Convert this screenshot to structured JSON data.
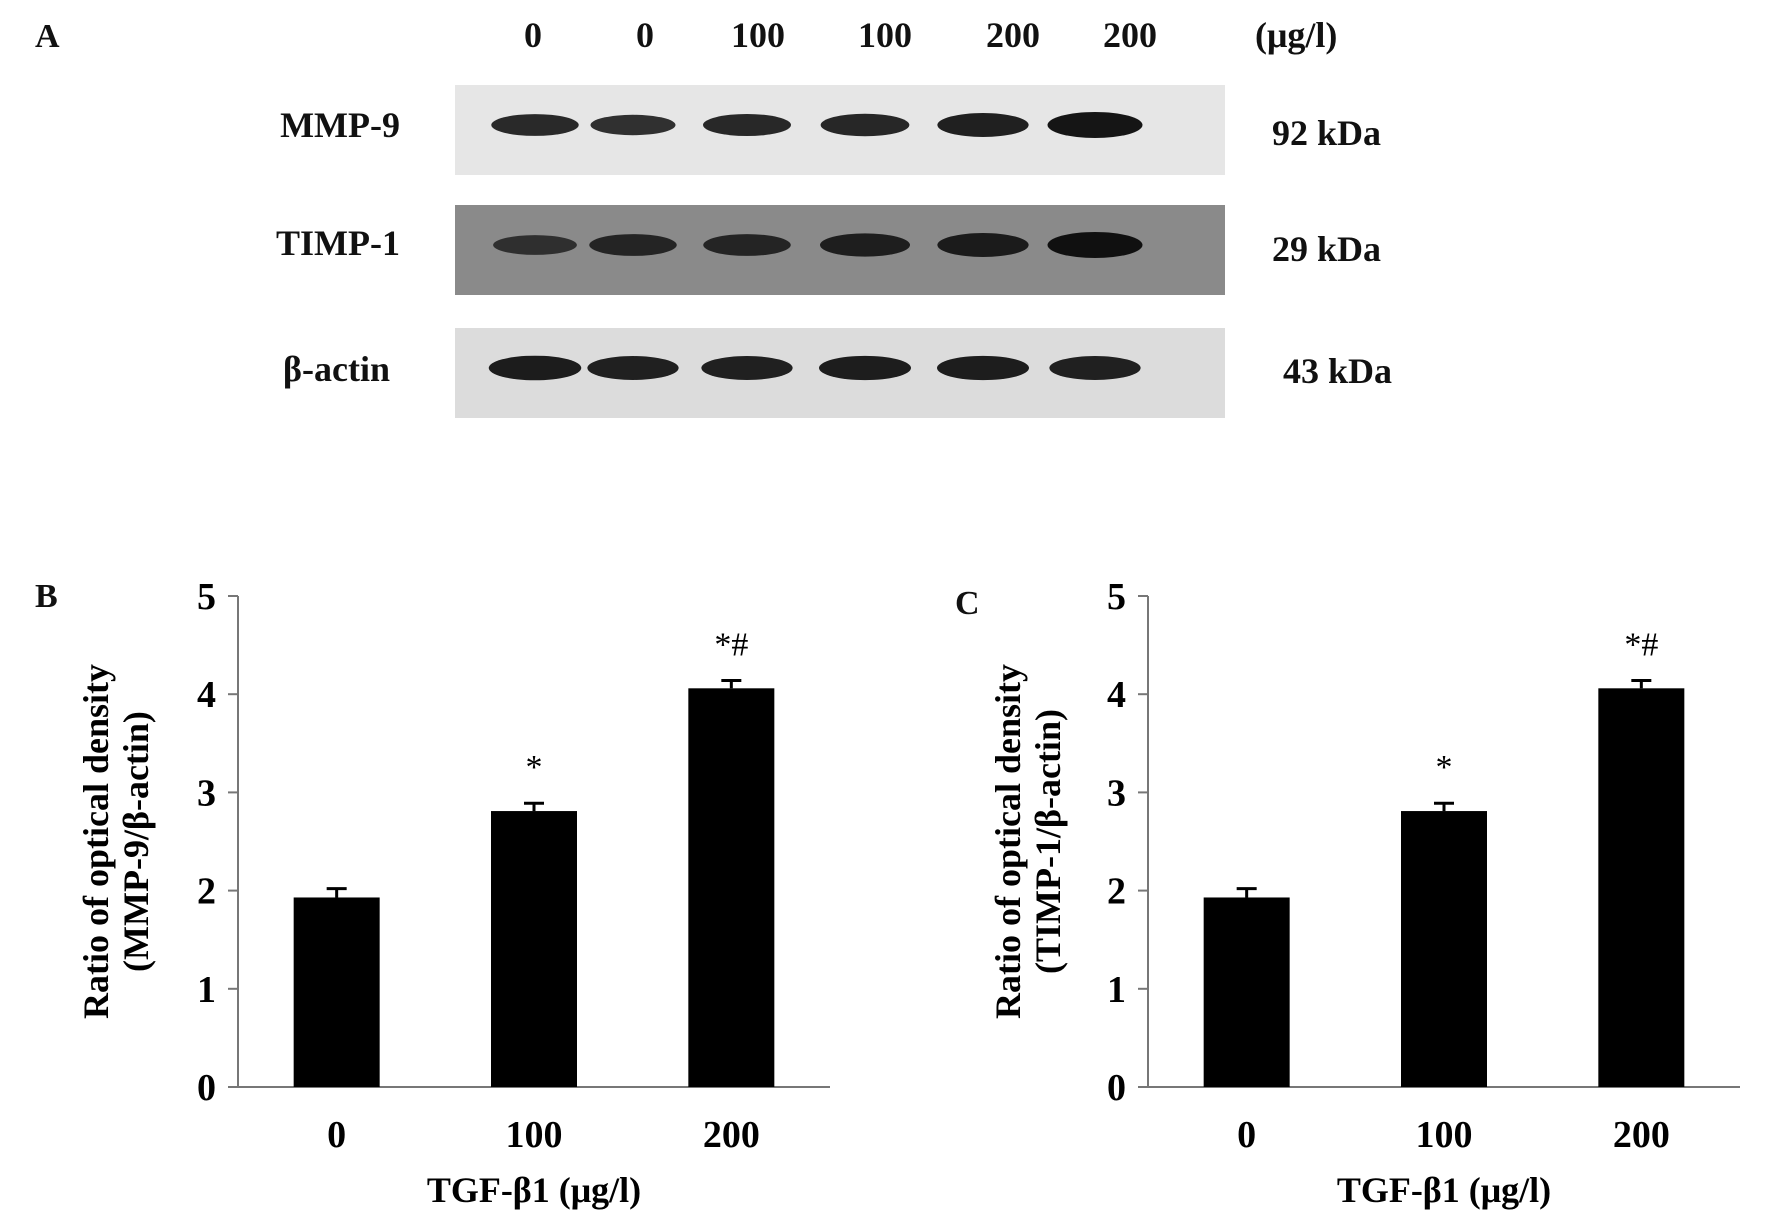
{
  "panel_a": {
    "letter": "A",
    "lanes": [
      "0",
      "0",
      "100",
      "100",
      "200",
      "200"
    ],
    "unit": "(μg/l)",
    "blots": [
      {
        "protein": "MMP-9",
        "size": "92 kDa",
        "background": "#e6e6e6",
        "band_intensity": [
          0.7,
          0.6,
          0.72,
          0.75,
          0.85,
          1.0
        ]
      },
      {
        "protein": "TIMP-1",
        "size": "29 kDa",
        "background": "#8a8a8a",
        "band_intensity": [
          0.55,
          0.7,
          0.7,
          0.8,
          0.85,
          1.0
        ]
      },
      {
        "protein": "β-actin",
        "size": "43 kDa",
        "background": "#dcdcdc",
        "band_intensity": [
          0.9,
          0.85,
          0.85,
          0.88,
          0.88,
          0.85
        ]
      }
    ]
  },
  "chart_data": [
    {
      "panel": "B",
      "type": "bar",
      "categories": [
        "0",
        "100",
        "200"
      ],
      "values": [
        1.93,
        2.81,
        4.06
      ],
      "errors": [
        0.09,
        0.08,
        0.08
      ],
      "annotations": [
        "",
        "*",
        "*#"
      ],
      "xlabel": "TGF-β1 (μg/l)",
      "ylabel": [
        "Ratio of optical density",
        "(MMP-9/β-actin)"
      ],
      "ylim": [
        0,
        5
      ],
      "yticks": [
        0,
        1,
        2,
        3,
        4,
        5
      ],
      "bar_color": "#000000",
      "grid": false
    },
    {
      "panel": "C",
      "type": "bar",
      "categories": [
        "0",
        "100",
        "200"
      ],
      "values": [
        1.93,
        2.81,
        4.06
      ],
      "errors": [
        0.09,
        0.08,
        0.08
      ],
      "annotations": [
        "",
        "*",
        "*#"
      ],
      "xlabel": "TGF-β1 (μg/l)",
      "ylabel": [
        "Ratio of optical density",
        "(TIMP-1/β-actin)"
      ],
      "ylim": [
        0,
        5
      ],
      "yticks": [
        0,
        1,
        2,
        3,
        4,
        5
      ],
      "bar_color": "#000000",
      "grid": false
    }
  ]
}
